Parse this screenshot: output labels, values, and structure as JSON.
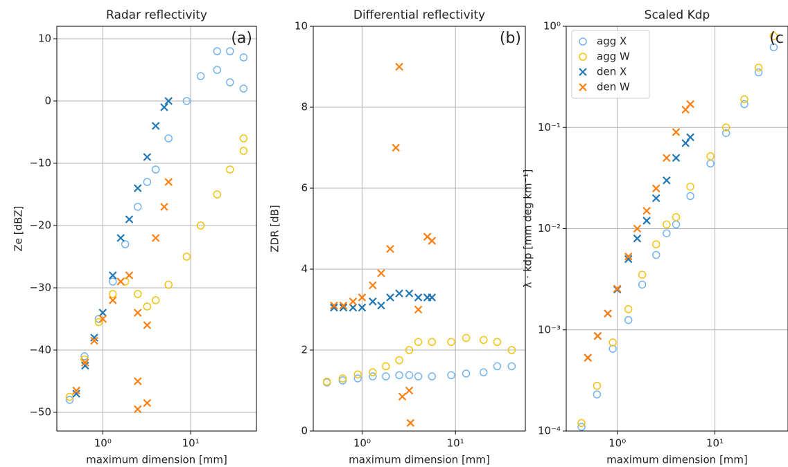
{
  "chart_data": [
    {
      "type": "scatter",
      "title": "Radar reflectivity",
      "annotation": "(a)",
      "xlabel": "maximum dimension [mm]",
      "ylabel": "Ze [dBZ]",
      "xscale": "log",
      "xlim": [
        0.3,
        56
      ],
      "xticks": [
        {
          "value": 1,
          "label": "10⁰"
        },
        {
          "value": 10,
          "label": "10¹"
        }
      ],
      "ylim": [
        -53,
        12
      ],
      "yticks": [
        {
          "value": -50,
          "label": "−50"
        },
        {
          "value": -40,
          "label": "−40"
        },
        {
          "value": -30,
          "label": "−30"
        },
        {
          "value": -20,
          "label": "−20"
        },
        {
          "value": -10,
          "label": "−10"
        },
        0,
        10
      ],
      "grid": true,
      "series": [
        {
          "color": "#74b4ee",
          "marker": "o",
          "x": [
            0.42,
            0.62,
            0.9,
            1.3,
            1.8,
            2.5,
            3.2,
            4,
            5.6,
            9,
            13,
            20,
            20,
            28,
            28,
            40,
            40
          ],
          "values": [
            -48,
            -41,
            -35,
            -29,
            -23,
            -17,
            -13,
            -11,
            -6,
            0,
            4,
            8,
            5,
            8,
            3,
            7,
            2
          ]
        },
        {
          "color": "#f5c211",
          "marker": "o",
          "x": [
            0.42,
            0.62,
            0.9,
            1.3,
            1.8,
            2.5,
            3.2,
            4,
            5.6,
            9,
            13,
            20,
            28,
            40,
            40
          ],
          "values": [
            -47.5,
            -41.5,
            -35.5,
            -31,
            -29,
            -31,
            -33,
            -32,
            -29.5,
            -25,
            -20,
            -15,
            -11,
            -6,
            -8
          ]
        },
        {
          "color": "#1f77b4",
          "marker": "x",
          "x": [
            0.5,
            0.63,
            0.8,
            1.0,
            1.3,
            1.6,
            2,
            2.5,
            3.2,
            4,
            5,
            5.6
          ],
          "values": [
            -47,
            -42.5,
            -38,
            -34,
            -28,
            -22,
            -19,
            -14,
            -9,
            -4,
            -1,
            0
          ]
        },
        {
          "color": "#ff7f0e",
          "marker": "x",
          "x": [
            0.5,
            0.63,
            0.8,
            1.0,
            1.3,
            1.6,
            2,
            2.5,
            2.5,
            2.5,
            3.2,
            3.2,
            4,
            5,
            5.6
          ],
          "values": [
            -46.5,
            -42,
            -38.5,
            -35,
            -32,
            -29,
            -28,
            -34,
            -45,
            -49.5,
            -36,
            -48.5,
            -22,
            -17,
            -13
          ]
        }
      ]
    },
    {
      "type": "scatter",
      "title": "Differential reflectivity",
      "annotation": "(b)",
      "xlabel": "maximum dimension [mm]",
      "ylabel": "ZDR [dB]",
      "xscale": "log",
      "xlim": [
        0.3,
        56
      ],
      "xticks": [
        {
          "value": 1,
          "label": "10⁰"
        },
        {
          "value": 10,
          "label": "10¹"
        }
      ],
      "ylim": [
        0,
        10
      ],
      "yticks": [
        0,
        2,
        4,
        6,
        8,
        10
      ],
      "grid": true,
      "series": [
        {
          "color": "#74b4ee",
          "marker": "o",
          "x": [
            0.42,
            0.62,
            0.9,
            1.3,
            1.8,
            2.5,
            3.2,
            4,
            5.6,
            9,
            13,
            20,
            28,
            40
          ],
          "values": [
            1.2,
            1.25,
            1.3,
            1.35,
            1.35,
            1.38,
            1.38,
            1.35,
            1.35,
            1.38,
            1.42,
            1.45,
            1.6,
            1.6
          ]
        },
        {
          "color": "#f5c211",
          "marker": "o",
          "x": [
            0.42,
            0.62,
            0.9,
            1.3,
            1.8,
            2.5,
            3.2,
            4,
            5.6,
            9,
            13,
            20,
            28,
            40
          ],
          "values": [
            1.22,
            1.3,
            1.4,
            1.45,
            1.6,
            1.75,
            2.0,
            2.2,
            2.2,
            2.2,
            2.3,
            2.25,
            2.2,
            2.0
          ]
        },
        {
          "color": "#1f77b4",
          "marker": "x",
          "x": [
            0.5,
            0.63,
            0.8,
            1.0,
            1.3,
            1.6,
            2,
            2.5,
            3.2,
            4,
            5,
            5.6
          ],
          "values": [
            3.05,
            3.05,
            3.05,
            3.05,
            3.2,
            3.1,
            3.3,
            3.4,
            3.4,
            3.3,
            3.3,
            3.3
          ]
        },
        {
          "color": "#ff7f0e",
          "marker": "x",
          "x": [
            0.5,
            0.63,
            0.8,
            1.0,
            1.3,
            1.6,
            2,
            2.3,
            2.5,
            2.7,
            3.2,
            3.3,
            4,
            5,
            5.6
          ],
          "values": [
            3.1,
            3.1,
            3.2,
            3.3,
            3.6,
            3.9,
            4.5,
            7.0,
            9.0,
            0.85,
            1.0,
            0.2,
            3.0,
            4.8,
            4.7
          ]
        }
      ]
    },
    {
      "type": "scatter",
      "title": "Scaled Kdp",
      "annotation": "(c",
      "xlabel": "maximum dimension [mm]",
      "ylabel": "λ · kdp   [mm deg km⁻¹]",
      "xscale": "log",
      "yscale": "log",
      "xlim": [
        0.3,
        56
      ],
      "xticks": [
        {
          "value": 1,
          "label": "10⁰"
        },
        {
          "value": 10,
          "label": "10¹"
        }
      ],
      "ylim": [
        0.0001,
        1
      ],
      "yticks": [
        {
          "value": 0.0001,
          "label": "10⁻⁴"
        },
        {
          "value": 0.001,
          "label": "10⁻³"
        },
        {
          "value": 0.01,
          "label": "10⁻²"
        },
        {
          "value": 0.1,
          "label": "10⁻¹"
        },
        {
          "value": 1,
          "label": "10⁰"
        }
      ],
      "grid": true,
      "legend": "upper left",
      "series": [
        {
          "name": "agg X",
          "color": "#74b4ee",
          "marker": "o",
          "x": [
            0.43,
            0.62,
            0.9,
            1.3,
            1.8,
            2.5,
            3.2,
            4,
            5.6,
            9,
            13,
            20,
            28,
            40
          ],
          "values": [
            0.00011,
            0.00023,
            0.00065,
            0.00125,
            0.0028,
            0.0055,
            0.009,
            0.011,
            0.021,
            0.044,
            0.088,
            0.17,
            0.35,
            0.62
          ]
        },
        {
          "name": "agg W",
          "color": "#f5c211",
          "marker": "o",
          "x": [
            0.43,
            0.62,
            0.9,
            1.3,
            1.8,
            2.5,
            3.2,
            4,
            5.6,
            9,
            13,
            20,
            28,
            40
          ],
          "values": [
            0.00012,
            0.00028,
            0.00075,
            0.0016,
            0.0035,
            0.007,
            0.011,
            0.013,
            0.026,
            0.052,
            0.1,
            0.19,
            0.39,
            0.8
          ]
        },
        {
          "name": "den X",
          "color": "#1f77b4",
          "marker": "x",
          "x": [
            0.5,
            0.63,
            0.8,
            1.0,
            1.3,
            1.6,
            2,
            2.5,
            3.2,
            4,
            5,
            5.6
          ],
          "values": [
            0.00053,
            0.00087,
            0.00145,
            0.0025,
            0.005,
            0.008,
            0.012,
            0.02,
            0.03,
            0.05,
            0.07,
            0.08
          ]
        },
        {
          "name": "den W",
          "color": "#ff7f0e",
          "marker": "x",
          "x": [
            0.5,
            0.63,
            0.8,
            1.0,
            1.3,
            1.6,
            2,
            2.5,
            3.2,
            4,
            5,
            5.6
          ],
          "values": [
            0.00053,
            0.00087,
            0.00145,
            0.00255,
            0.0053,
            0.01,
            0.015,
            0.025,
            0.05,
            0.09,
            0.15,
            0.17
          ]
        }
      ]
    }
  ]
}
